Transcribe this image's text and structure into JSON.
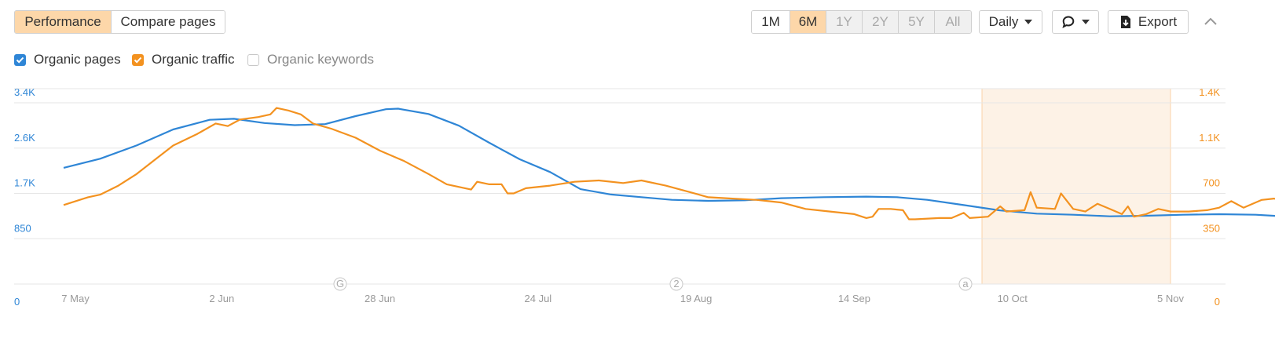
{
  "tabs": {
    "performance": "Performance",
    "compare": "Compare pages"
  },
  "ranges": [
    {
      "label": "1M",
      "state": "normal"
    },
    {
      "label": "6M",
      "state": "active"
    },
    {
      "label": "1Y",
      "state": "disabled"
    },
    {
      "label": "2Y",
      "state": "disabled"
    },
    {
      "label": "5Y",
      "state": "disabled"
    },
    {
      "label": "All",
      "state": "disabled"
    }
  ],
  "interval": "Daily",
  "export_label": "Export",
  "legend": {
    "pages": "Organic pages",
    "traffic": "Organic traffic",
    "keywords": "Organic keywords"
  },
  "colors": {
    "pages": "#2f86d6",
    "traffic": "#f39220",
    "accent_bg": "#fdd7a9",
    "highlight": "#fdf2e6"
  },
  "icons": [
    "chevron-up-icon",
    "comment-icon",
    "export-icon",
    "checkbox-icon"
  ],
  "chart_data": {
    "type": "line",
    "x_ticks": [
      "7 May",
      "2 Jun",
      "28 Jun",
      "24 Jul",
      "19 Aug",
      "14 Sep",
      "10 Oct",
      "5 Nov"
    ],
    "x_range": [
      "2024-05-07",
      "2024-11-05"
    ],
    "y_left": {
      "ticks": [
        "0",
        "850",
        "1.7K",
        "2.6K",
        "3.4K"
      ],
      "range": [
        0,
        3400
      ]
    },
    "y_right": {
      "ticks": [
        "0",
        "350",
        "700",
        "1.1K",
        "1.4K"
      ],
      "range": [
        0,
        1400
      ]
    },
    "grid": true,
    "annotations": [
      "G",
      "2",
      "a"
    ],
    "highlight_range": [
      "2024-10-05",
      "2024-11-05"
    ],
    "series": [
      {
        "name": "Organic pages",
        "axis": "left",
        "values": [
          [
            0,
            2180
          ],
          [
            6,
            2350
          ],
          [
            12,
            2600
          ],
          [
            18,
            2900
          ],
          [
            24,
            3080
          ],
          [
            28,
            3100
          ],
          [
            33,
            3020
          ],
          [
            38,
            2980
          ],
          [
            43,
            3000
          ],
          [
            48,
            3150
          ],
          [
            53,
            3280
          ],
          [
            55,
            3290
          ],
          [
            60,
            3190
          ],
          [
            65,
            2970
          ],
          [
            70,
            2650
          ],
          [
            75,
            2340
          ],
          [
            80,
            2100
          ],
          [
            85,
            1780
          ],
          [
            90,
            1680
          ],
          [
            95,
            1630
          ],
          [
            100,
            1580
          ],
          [
            106,
            1560
          ],
          [
            112,
            1570
          ],
          [
            118,
            1610
          ],
          [
            125,
            1630
          ],
          [
            132,
            1640
          ],
          [
            137,
            1630
          ],
          [
            142,
            1580
          ],
          [
            148,
            1480
          ],
          [
            154,
            1380
          ],
          [
            160,
            1320
          ],
          [
            166,
            1300
          ],
          [
            172,
            1270
          ],
          [
            178,
            1280
          ],
          [
            184,
            1300
          ],
          [
            190,
            1310
          ],
          [
            196,
            1300
          ],
          [
            202,
            1260
          ],
          [
            208,
            1210
          ]
        ]
      },
      {
        "name": "Organic traffic",
        "axis": "right",
        "values": [
          [
            0,
            610
          ],
          [
            4,
            670
          ],
          [
            6,
            690
          ],
          [
            9,
            760
          ],
          [
            12,
            850
          ],
          [
            15,
            960
          ],
          [
            18,
            1070
          ],
          [
            22,
            1160
          ],
          [
            25,
            1240
          ],
          [
            27,
            1220
          ],
          [
            29,
            1270
          ],
          [
            32,
            1290
          ],
          [
            34,
            1310
          ],
          [
            35,
            1360
          ],
          [
            37,
            1340
          ],
          [
            39,
            1310
          ],
          [
            41,
            1240
          ],
          [
            44,
            1200
          ],
          [
            48,
            1130
          ],
          [
            52,
            1030
          ],
          [
            56,
            950
          ],
          [
            60,
            850
          ],
          [
            63,
            770
          ],
          [
            66,
            740
          ],
          [
            67,
            730
          ],
          [
            68,
            790
          ],
          [
            70,
            770
          ],
          [
            72,
            770
          ],
          [
            73,
            700
          ],
          [
            74,
            700
          ],
          [
            76,
            740
          ],
          [
            80,
            760
          ],
          [
            84,
            790
          ],
          [
            88,
            800
          ],
          [
            92,
            780
          ],
          [
            95,
            800
          ],
          [
            99,
            760
          ],
          [
            103,
            710
          ],
          [
            106,
            670
          ],
          [
            110,
            660
          ],
          [
            114,
            650
          ],
          [
            118,
            630
          ],
          [
            122,
            580
          ],
          [
            126,
            560
          ],
          [
            130,
            540
          ],
          [
            132,
            510
          ],
          [
            133,
            520
          ],
          [
            134,
            580
          ],
          [
            136,
            580
          ],
          [
            138,
            570
          ],
          [
            139,
            500
          ],
          [
            140,
            500
          ],
          [
            144,
            510
          ],
          [
            146,
            510
          ],
          [
            148,
            550
          ],
          [
            149,
            510
          ],
          [
            152,
            520
          ],
          [
            154,
            600
          ],
          [
            155,
            560
          ],
          [
            158,
            570
          ],
          [
            159,
            710
          ],
          [
            160,
            590
          ],
          [
            163,
            580
          ],
          [
            164,
            700
          ],
          [
            166,
            580
          ],
          [
            168,
            560
          ],
          [
            170,
            620
          ],
          [
            172,
            580
          ],
          [
            174,
            540
          ],
          [
            175,
            600
          ],
          [
            176,
            520
          ],
          [
            178,
            540
          ],
          [
            180,
            580
          ],
          [
            182,
            560
          ],
          [
            185,
            560
          ],
          [
            188,
            570
          ],
          [
            190,
            590
          ],
          [
            192,
            640
          ],
          [
            194,
            590
          ],
          [
            197,
            650
          ],
          [
            199,
            660
          ],
          [
            201,
            640
          ],
          [
            203,
            660
          ],
          [
            205,
            670
          ],
          [
            206,
            660
          ],
          [
            207,
            660
          ]
        ]
      }
    ]
  }
}
